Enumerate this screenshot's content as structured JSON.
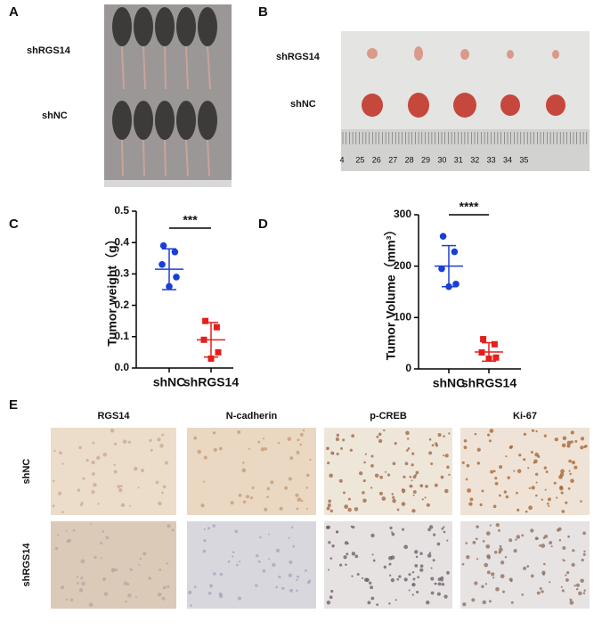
{
  "panel_a": {
    "letter": "A",
    "labels": [
      "shRGS14",
      "shNC"
    ]
  },
  "panel_b": {
    "letter": "B",
    "labels": [
      "shRGS14",
      "shNC"
    ],
    "ruler": [
      "4",
      "25",
      "26",
      "27",
      "28",
      "29",
      "30",
      "31",
      "32",
      "33",
      "34",
      "35"
    ]
  },
  "chart_data": [
    {
      "type": "scatter",
      "letter": "C",
      "ylabel": "Tumor weight（g）",
      "categories": [
        "shNC",
        "shRGS14"
      ],
      "ylim": [
        0,
        0.5
      ],
      "yticks": [
        {
          "value": 0,
          "label": "0.0"
        },
        0.1,
        0.2,
        0.3,
        0.4,
        0.5
      ],
      "points": [
        [
          0.39,
          0.37,
          0.33,
          0.29,
          0.26
        ],
        [
          0.15,
          0.13,
          0.09,
          0.05,
          0.03
        ]
      ],
      "means": [
        0.315,
        0.09
      ],
      "sd": [
        0.065,
        0.055
      ],
      "colors": [
        "#1a3fd6",
        "#e3201b"
      ],
      "markers": [
        "circle",
        "square"
      ],
      "annotation": "***"
    },
    {
      "type": "scatter",
      "letter": "D",
      "ylabel": "Tumor Volume（mm³）",
      "categories": [
        "shNC",
        "shRGS14"
      ],
      "ylim": [
        0,
        300
      ],
      "yticks": [
        0,
        100,
        200,
        300
      ],
      "points": [
        [
          258,
          228,
          195,
          165,
          160
        ],
        [
          58,
          48,
          32,
          22,
          20
        ]
      ],
      "means": [
        200,
        33
      ],
      "sd": [
        40,
        18
      ],
      "colors": [
        "#1a3fd6",
        "#e3201b"
      ],
      "markers": [
        "circle",
        "square"
      ],
      "annotation": "****"
    }
  ],
  "panel_e": {
    "letter": "E",
    "columns": [
      "RGS14",
      "N-cadherin",
      "p-CREB",
      "Ki-67"
    ],
    "rows": [
      "shNC",
      "shRGS14"
    ]
  }
}
